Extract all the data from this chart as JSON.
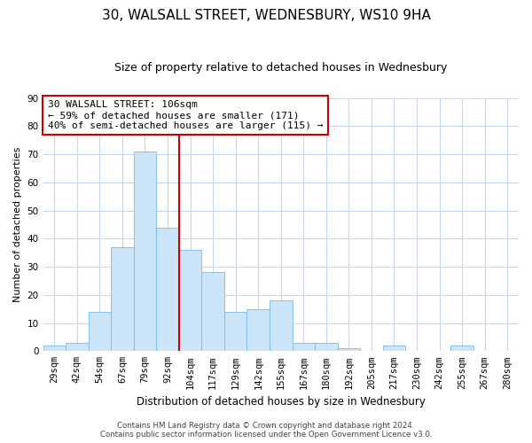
{
  "title": "30, WALSALL STREET, WEDNESBURY, WS10 9HA",
  "subtitle": "Size of property relative to detached houses in Wednesbury",
  "xlabel": "Distribution of detached houses by size in Wednesbury",
  "ylabel": "Number of detached properties",
  "categories": [
    "29sqm",
    "42sqm",
    "54sqm",
    "67sqm",
    "79sqm",
    "92sqm",
    "104sqm",
    "117sqm",
    "129sqm",
    "142sqm",
    "155sqm",
    "167sqm",
    "180sqm",
    "192sqm",
    "205sqm",
    "217sqm",
    "230sqm",
    "242sqm",
    "255sqm",
    "267sqm",
    "280sqm"
  ],
  "values": [
    2,
    3,
    14,
    37,
    71,
    44,
    36,
    28,
    14,
    15,
    18,
    3,
    3,
    1,
    0,
    2,
    0,
    0,
    2,
    0,
    0
  ],
  "bar_color": "#cce4f7",
  "bar_edge_color": "#7ab8e8",
  "ylim": [
    0,
    90
  ],
  "yticks": [
    0,
    10,
    20,
    30,
    40,
    50,
    60,
    70,
    80,
    90
  ],
  "property_line_index": 6,
  "property_line_color": "#cc0000",
  "annotation_title": "30 WALSALL STREET: 106sqm",
  "annotation_line1": "← 59% of detached houses are smaller (171)",
  "annotation_line2": "40% of semi-detached houses are larger (115) →",
  "annotation_box_color": "#ffffff",
  "annotation_box_edge": "#cc0000",
  "footer1": "Contains HM Land Registry data © Crown copyright and database right 2024.",
  "footer2": "Contains public sector information licensed under the Open Government Licence v3.0.",
  "background_color": "#ffffff",
  "grid_color": "#c8d8e8",
  "title_fontsize": 11,
  "subtitle_fontsize": 9,
  "ylabel_fontsize": 8,
  "xlabel_fontsize": 8.5,
  "tick_fontsize": 7.5,
  "footer_fontsize": 6.2
}
